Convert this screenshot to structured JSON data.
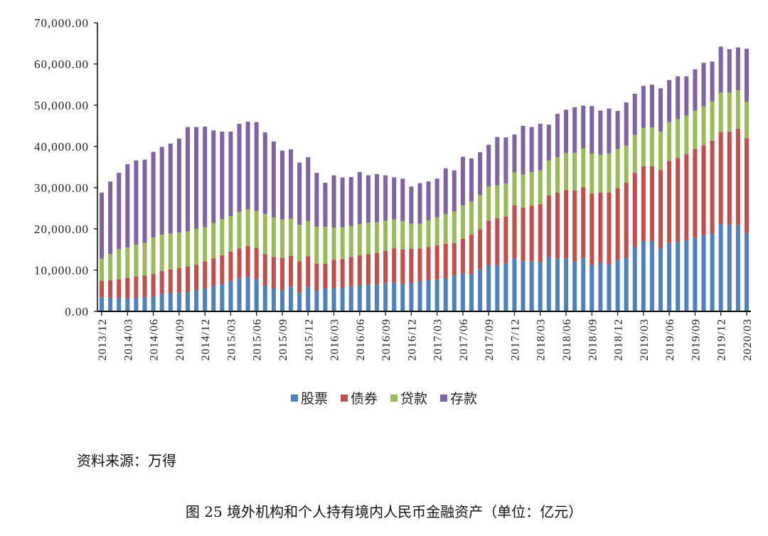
{
  "chart_data": {
    "type": "bar",
    "stacked": true,
    "title": "图 25 境外机构和个人持有境内人民币金融资产（单位：亿元）",
    "source": "资料来源：万得",
    "xlabel": "",
    "ylabel": "",
    "ylim": [
      0,
      70000
    ],
    "y_ticks": [
      "0.00",
      "10,000.00",
      "20,000.00",
      "30,000.00",
      "40,000.00",
      "50,000.00",
      "60,000.00",
      "70,000.00"
    ],
    "x_range": [
      "2013/12",
      "2020/03"
    ],
    "x_tick_labels": [
      "2013/12",
      "2014/03",
      "2014/06",
      "2014/09",
      "2014/12",
      "2015/03",
      "2015/06",
      "2015/09",
      "2015/12",
      "2016/03",
      "2016/06",
      "2016/09",
      "2016/12",
      "2017/03",
      "2017/06",
      "2017/09",
      "2017/12",
      "2018/03",
      "2018/06",
      "2018/09",
      "2018/12",
      "2019/03",
      "2019/06",
      "2019/09",
      "2019/12",
      "2020/03"
    ],
    "legend_position": "bottom",
    "series": [
      {
        "name": "股票",
        "color": "#4f81bd",
        "values": [
          3400,
          3300,
          3200,
          3100,
          3300,
          3400,
          3600,
          4200,
          4400,
          4500,
          4600,
          5100,
          5600,
          6100,
          6600,
          7300,
          8000,
          8400,
          7800,
          6200,
          5600,
          5200,
          6000,
          4600,
          6000,
          5000,
          5600,
          5600,
          5700,
          6000,
          6300,
          6500,
          6500,
          6700,
          7000,
          6600,
          6900,
          7300,
          7600,
          7800,
          8000,
          8600,
          9200,
          9000,
          10300,
          11200,
          11200,
          11600,
          12900,
          12100,
          12200,
          12000,
          13100,
          12800,
          12900,
          12100,
          12900,
          11200,
          11800,
          11400,
          12400,
          13000,
          15600,
          17000,
          17000,
          15300,
          16600,
          16800,
          17300,
          17900,
          18500,
          18800,
          21200,
          21000,
          21000,
          19000
        ]
      },
      {
        "name": "债券",
        "color": "#c0504d",
        "values": [
          4000,
          4200,
          4600,
          5000,
          5200,
          5300,
          5500,
          5600,
          5800,
          6000,
          6300,
          6200,
          6500,
          6800,
          7000,
          7200,
          7300,
          7500,
          7600,
          7700,
          7600,
          7800,
          7500,
          7600,
          7400,
          6600,
          6000,
          6900,
          7000,
          7200,
          7300,
          7400,
          7700,
          8000,
          8300,
          8400,
          8300,
          8000,
          8000,
          8200,
          8400,
          8000,
          8400,
          9600,
          9600,
          10800,
          11400,
          11400,
          12800,
          13100,
          13400,
          14000,
          15000,
          16000,
          16500,
          17200,
          17200,
          17400,
          17000,
          17400,
          17500,
          18200,
          18000,
          18200,
          18200,
          19000,
          19900,
          20400,
          20800,
          21500,
          21800,
          22600,
          22300,
          22600,
          23300,
          23000
        ]
      },
      {
        "name": "贷款",
        "color": "#9bbb59",
        "values": [
          5400,
          6400,
          7300,
          7400,
          7700,
          7900,
          8800,
          8800,
          8700,
          8600,
          8500,
          8700,
          8300,
          8500,
          8800,
          8600,
          8800,
          8800,
          9000,
          9700,
          9600,
          9300,
          9000,
          8800,
          8500,
          8900,
          8900,
          7800,
          7700,
          7500,
          7600,
          7600,
          7400,
          7300,
          7000,
          6900,
          6100,
          6000,
          6500,
          6800,
          7200,
          7600,
          8100,
          8000,
          8300,
          8300,
          8000,
          8000,
          8000,
          8000,
          8200,
          8200,
          8500,
          8600,
          9000,
          9100,
          9400,
          9600,
          9200,
          9500,
          9500,
          9000,
          9200,
          9300,
          9400,
          9300,
          9400,
          9400,
          9400,
          9300,
          9400,
          9500,
          9600,
          9500,
          9300,
          8800
        ]
      },
      {
        "name": "存款",
        "color": "#8064a2",
        "values": [
          16000,
          17600,
          18500,
          20200,
          20400,
          20200,
          20800,
          21300,
          21800,
          22800,
          25300,
          24700,
          24400,
          22500,
          21200,
          20500,
          21400,
          21300,
          21500,
          19800,
          18400,
          16700,
          16800,
          15100,
          15500,
          13100,
          10700,
          12700,
          12100,
          11900,
          12600,
          11500,
          11700,
          11000,
          10200,
          10300,
          9000,
          9800,
          9400,
          9400,
          11100,
          10000,
          11800,
          10500,
          10400,
          10100,
          11700,
          11200,
          9200,
          11800,
          10900,
          11300,
          8700,
          10500,
          10500,
          11100,
          10400,
          11600,
          10700,
          10900,
          9200,
          10500,
          10000,
          10200,
          10400,
          10500,
          10200,
          10400,
          9500,
          10000,
          10600,
          9700,
          11100,
          10500,
          10400,
          12900
        ]
      }
    ]
  }
}
